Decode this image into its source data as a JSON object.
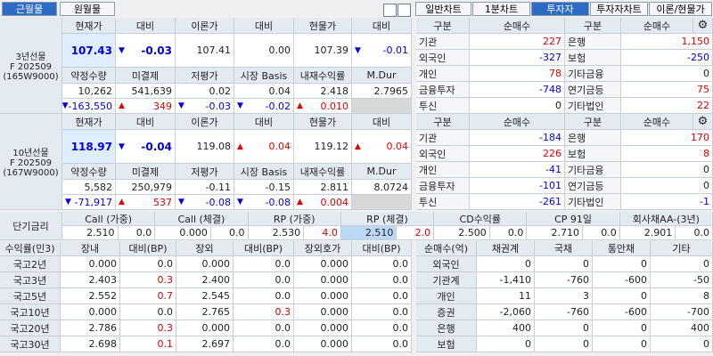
{
  "tabs": {
    "left": [
      "근월물",
      "원월물"
    ],
    "left_selected": 0,
    "right": [
      "일반차트",
      "1분차트",
      "투자자",
      "투자자차트",
      "이론/현물가"
    ],
    "right_selected": 2
  },
  "futures": [
    {
      "label": [
        "3년선물",
        "F 202509",
        "(165W9000)"
      ],
      "header1": [
        "현재가",
        "대비",
        "이론가",
        "대비",
        "현물가",
        "대비"
      ],
      "row1": [
        "107.43",
        {
          "arrow": "▼",
          "text": "-0.03"
        },
        "107.41",
        "0.00",
        "107.39",
        {
          "arrow": "▼",
          "text": "-0.01"
        }
      ],
      "header2": [
        "약정수량",
        "미결제",
        "저평가",
        "시장 Basis",
        "내재수익률",
        "M.Dur"
      ],
      "row2": [
        "10,262",
        "541,639",
        "0.02",
        "0.04",
        "2.418",
        "2.7965"
      ],
      "row3": [
        {
          "arrow": "▼",
          "text": "-163,550"
        },
        {
          "arrow": "▲",
          "text": "349"
        },
        {
          "arrow": "▼",
          "text": "-0.03"
        },
        {
          "arrow": "▼",
          "text": "-0.02"
        },
        {
          "arrow": "▲",
          "text": "0.010"
        }
      ]
    },
    {
      "label": [
        "10년선물",
        "F 202509",
        "(167W9000)"
      ],
      "header1": [
        "현재가",
        "대비",
        "이론가",
        "대비",
        "현물가",
        "대비"
      ],
      "row1": [
        "118.97",
        {
          "arrow": "▼",
          "text": "-0.04"
        },
        "119.08",
        {
          "arrow": "▲",
          "text": "0.04"
        },
        "119.12",
        {
          "arrow": "▲",
          "text": "0.04"
        }
      ],
      "header2": [
        "약정수량",
        "미결제",
        "저평가",
        "시장 Basis",
        "내재수익률",
        "M.Dur"
      ],
      "row2": [
        "5,582",
        "250,979",
        "-0.11",
        "-0.15",
        "2.811",
        "8.0724"
      ],
      "row3": [
        {
          "arrow": "▼",
          "text": "-71,917"
        },
        {
          "arrow": "▲",
          "text": "537"
        },
        {
          "arrow": "▼",
          "text": "-0.08"
        },
        {
          "arrow": "▼",
          "text": "-0.08"
        },
        {
          "arrow": "▲",
          "text": "0.004"
        }
      ]
    }
  ],
  "investors": [
    {
      "header": [
        "구분",
        "순매수",
        "구분",
        "순매수"
      ],
      "rows": [
        [
          "기관",
          "227",
          "은행",
          "1,150"
        ],
        [
          "외국인",
          "-327",
          "보험",
          "-250"
        ],
        [
          "개인",
          "78",
          "기타금융",
          "0"
        ],
        [
          "금융투자",
          "-748",
          "연기금등",
          "75"
        ],
        [
          "투신",
          "0",
          "기타법인",
          "22"
        ]
      ]
    },
    {
      "header": [
        "구분",
        "순매수",
        "구분",
        "순매수"
      ],
      "rows": [
        [
          "기관",
          "-184",
          "은행",
          "170"
        ],
        [
          "외국인",
          "226",
          "보험",
          "8"
        ],
        [
          "개인",
          "-41",
          "기타금융",
          "0"
        ],
        [
          "금융투자",
          "-101",
          "연기금등",
          "0"
        ],
        [
          "투신",
          "-261",
          "기타법인",
          "-1"
        ]
      ]
    }
  ],
  "rates": {
    "label": "단기금리",
    "items": [
      {
        "name": "Call (가중)",
        "rate": "2.510",
        "change": "0.0"
      },
      {
        "name": "Call (체결)",
        "rate": "0.000",
        "change": "0.0"
      },
      {
        "name": "RP (가중)",
        "rate": "2.530",
        "change": "4.0"
      },
      {
        "name": "RP (체결)",
        "rate": "2.510",
        "change": "2.0"
      },
      {
        "name": "CD수익률",
        "rate": "2.500",
        "change": "0.0"
      },
      {
        "name": "CP 91일",
        "rate": "2.710",
        "change": "0.0"
      },
      {
        "name": "회사채AA-(3년)",
        "rate": "2.901",
        "change": "0.0"
      }
    ]
  },
  "bonds": {
    "header": [
      "수익률(민3)",
      "장내",
      "대비(BP)",
      "장외",
      "대비(BP)",
      "장외호가",
      "대비(BP)"
    ],
    "rows": [
      [
        "국고2년",
        "0.000",
        "0.0",
        "0.000",
        "0.0",
        "0.000",
        "0.0"
      ],
      [
        "국고3년",
        "2.403",
        "0.3",
        "2.400",
        "0.0",
        "0.000",
        "0.0"
      ],
      [
        "국고5년",
        "2.552",
        "0.7",
        "2.545",
        "0.0",
        "0.000",
        "0.0"
      ],
      [
        "국고10년",
        "0.000",
        "0.0",
        "2.765",
        "0.3",
        "0.000",
        "0.0"
      ],
      [
        "국고20년",
        "2.786",
        "0.3",
        "0.000",
        "0.0",
        "0.000",
        "0.0"
      ],
      [
        "국고30년",
        "2.698",
        "0.1",
        "2.697",
        "0.0",
        "0.000",
        "0.0"
      ]
    ]
  },
  "bond_flows": {
    "header": [
      "순매수(억)",
      "채권계",
      "국채",
      "통안채",
      "기타"
    ],
    "rows": [
      [
        "외국인",
        "0",
        "0",
        "0",
        "0"
      ],
      [
        "기관계",
        "-1,410",
        "-760",
        "-600",
        "-50"
      ],
      [
        "개인",
        "11",
        "3",
        "0",
        "8"
      ],
      [
        "증권",
        "-2,060",
        "-760",
        "-600",
        "-700"
      ],
      [
        "은행",
        "400",
        "0",
        "0",
        "400"
      ],
      [
        "보험",
        "0",
        "0",
        "0",
        "0"
      ]
    ]
  }
}
